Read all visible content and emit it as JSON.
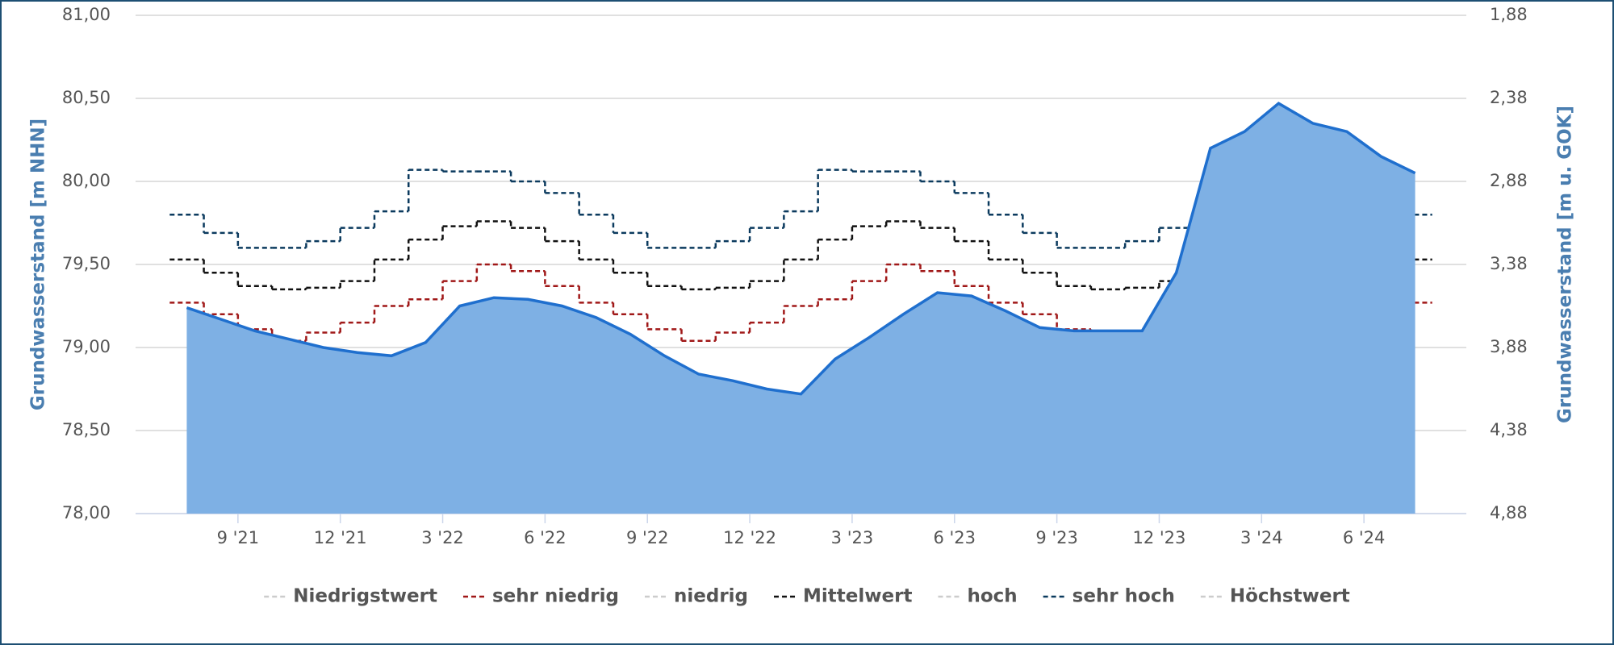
{
  "chart_data": {
    "type": "line",
    "x": [
      "2021-07",
      "2021-08",
      "2021-09",
      "2021-10",
      "2021-11",
      "2021-12",
      "2022-01",
      "2022-02",
      "2022-03",
      "2022-04",
      "2022-05",
      "2022-06",
      "2022-07",
      "2022-08",
      "2022-09",
      "2022-10",
      "2022-11",
      "2022-12",
      "2023-01",
      "2023-02",
      "2023-03",
      "2023-04",
      "2023-05",
      "2023-06",
      "2023-07",
      "2023-08",
      "2023-09",
      "2023-10",
      "2023-11",
      "2023-12",
      "2024-01",
      "2024-02",
      "2024-03",
      "2024-04",
      "2024-05",
      "2024-06",
      "2024-07"
    ],
    "xlim": [
      "2021-06",
      "2024-09"
    ],
    "xticks": [
      {
        "value": "2021-09",
        "label": "9 '21"
      },
      {
        "value": "2021-12",
        "label": "12 '21"
      },
      {
        "value": "2022-03",
        "label": "3 '22"
      },
      {
        "value": "2022-06",
        "label": "6 '22"
      },
      {
        "value": "2022-09",
        "label": "9 '22"
      },
      {
        "value": "2022-12",
        "label": "12 '22"
      },
      {
        "value": "2023-03",
        "label": "3 '23"
      },
      {
        "value": "2023-06",
        "label": "6 '23"
      },
      {
        "value": "2023-09",
        "label": "9 '23"
      },
      {
        "value": "2023-12",
        "label": "12 '23"
      },
      {
        "value": "2024-03",
        "label": "3 '24"
      },
      {
        "value": "2024-06",
        "label": "6 '24"
      }
    ],
    "ylabel": "Grundwasserstand [m NHN]",
    "ylim": [
      78,
      81
    ],
    "yticks": [
      {
        "value": 78,
        "label": "78,00"
      },
      {
        "value": 78.5,
        "label": "78,50"
      },
      {
        "value": 79,
        "label": "79,00"
      },
      {
        "value": 79.5,
        "label": "79,50"
      },
      {
        "value": 80,
        "label": "80,00"
      },
      {
        "value": 80.5,
        "label": "80,50"
      },
      {
        "value": 81,
        "label": "81,00"
      }
    ],
    "y2label": "Grundwasserstand [m u. GOK]",
    "y2lim": [
      4.88,
      1.88
    ],
    "y2ticks": [
      {
        "value": 4.88,
        "label": "4,88"
      },
      {
        "value": 4.38,
        "label": "4,38"
      },
      {
        "value": 3.88,
        "label": "3,88"
      },
      {
        "value": 3.38,
        "label": "3,38"
      },
      {
        "value": 2.88,
        "label": "2,88"
      },
      {
        "value": 2.38,
        "label": "2,38"
      },
      {
        "value": 1.88,
        "label": "1,88"
      }
    ],
    "grid": true,
    "legend": "bottom",
    "series": [
      {
        "name": "Niedrigstwert",
        "color": "#cccccc",
        "hidden": true
      },
      {
        "name": "sehr niedrig",
        "color": "#a01818",
        "step": true,
        "values": [
          79.27,
          79.2,
          79.11,
          79.04,
          79.09,
          79.15,
          79.25,
          79.29,
          79.4,
          79.5,
          79.46,
          79.37,
          79.27,
          79.2,
          79.11,
          79.04,
          79.09,
          79.15,
          79.25,
          79.29,
          79.4,
          79.5,
          79.46,
          79.37,
          79.27,
          79.2,
          79.11,
          79.04,
          79.09,
          79.15,
          79.25,
          79.29,
          79.4,
          79.5,
          79.46,
          79.37,
          79.27
        ]
      },
      {
        "name": "niedrig",
        "color": "#cccccc",
        "hidden": true
      },
      {
        "name": "Mittelwert",
        "color": "#111111",
        "step": true,
        "values": [
          79.53,
          79.45,
          79.37,
          79.35,
          79.36,
          79.4,
          79.53,
          79.65,
          79.73,
          79.76,
          79.72,
          79.64,
          79.53,
          79.45,
          79.37,
          79.35,
          79.36,
          79.4,
          79.53,
          79.65,
          79.73,
          79.76,
          79.72,
          79.64,
          79.53,
          79.45,
          79.37,
          79.35,
          79.36,
          79.4,
          79.53,
          79.65,
          79.73,
          79.76,
          79.72,
          79.64,
          79.53
        ]
      },
      {
        "name": "hoch",
        "color": "#cccccc",
        "hidden": true
      },
      {
        "name": "sehr hoch",
        "color": "#0b3a5e",
        "step": true,
        "values": [
          79.8,
          79.69,
          79.6,
          79.6,
          79.64,
          79.72,
          79.82,
          80.07,
          80.06,
          80.06,
          80.0,
          79.93,
          79.8,
          79.69,
          79.6,
          79.6,
          79.64,
          79.72,
          79.82,
          80.07,
          80.06,
          80.06,
          80.0,
          79.93,
          79.8,
          79.69,
          79.6,
          79.6,
          79.64,
          79.72,
          79.82,
          80.07,
          80.06,
          80.06,
          80.0,
          79.93,
          79.8
        ]
      },
      {
        "name": "Höchstwert",
        "color": "#cccccc",
        "hidden": true
      },
      {
        "color": "#1f6fce",
        "fill": "#7eb0e4",
        "values": [
          79.24,
          79.17,
          79.1,
          79.05,
          79.0,
          78.97,
          78.95,
          79.03,
          79.25,
          79.3,
          79.29,
          79.25,
          79.18,
          79.08,
          78.95,
          78.84,
          78.8,
          78.75,
          78.72,
          78.93,
          79.06,
          79.2,
          79.33,
          79.31,
          79.22,
          79.12,
          79.1,
          79.1,
          79.1,
          79.45,
          80.2,
          80.3,
          80.47,
          80.35,
          80.3,
          80.15,
          80.05
        ]
      }
    ]
  }
}
